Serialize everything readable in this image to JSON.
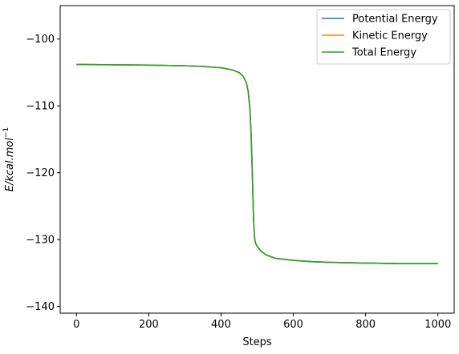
{
  "chart_data": {
    "type": "line",
    "xlabel": "Steps",
    "ylabel_main": "E/kcal.mol",
    "ylabel_sup": "−1",
    "xlim": [
      -45,
      1045
    ],
    "ylim": [
      -141,
      -95
    ],
    "xticks": [
      0,
      200,
      400,
      600,
      800,
      1000
    ],
    "xtick_labels": [
      "0",
      "200",
      "400",
      "600",
      "800",
      "1000"
    ],
    "yticks": [
      -100,
      -110,
      -120,
      -130,
      -140
    ],
    "ytick_labels": [
      "−100",
      "−110",
      "−120",
      "−130",
      "−140"
    ],
    "grid": false,
    "legend_position": "top-right",
    "series": [
      {
        "name": "Potential Energy",
        "color": "#1f77b4",
        "x": [
          0,
          100,
          200,
          300,
          350,
          400,
          430,
          450,
          460,
          470,
          475,
          480,
          483,
          486,
          488,
          490,
          492,
          494,
          496,
          500,
          510,
          525,
          550,
          600,
          650,
          700,
          800,
          900,
          1000
        ],
        "y": [
          -103.8,
          -103.85,
          -103.9,
          -104.0,
          -104.1,
          -104.3,
          -104.6,
          -105.0,
          -105.5,
          -106.5,
          -107.8,
          -110.5,
          -114,
          -119,
          -123,
          -127,
          -129.3,
          -130.2,
          -130.6,
          -131.0,
          -131.7,
          -132.3,
          -132.8,
          -133.1,
          -133.3,
          -133.4,
          -133.5,
          -133.6,
          -133.6
        ]
      },
      {
        "name": "Kinetic Energy",
        "color": "#ff7f0e",
        "x": [
          0,
          100,
          200,
          300,
          350,
          400,
          430,
          450,
          460,
          470,
          475,
          480,
          483,
          486,
          488,
          490,
          492,
          494,
          496,
          500,
          510,
          525,
          550,
          600,
          650,
          700,
          800,
          900,
          1000
        ],
        "y": [
          -103.8,
          -103.85,
          -103.9,
          -104.0,
          -104.1,
          -104.3,
          -104.6,
          -105.0,
          -105.5,
          -106.5,
          -107.8,
          -110.5,
          -114,
          -119,
          -123,
          -127,
          -129.3,
          -130.2,
          -130.6,
          -131.0,
          -131.7,
          -132.3,
          -132.8,
          -133.1,
          -133.3,
          -133.4,
          -133.5,
          -133.6,
          -133.6
        ]
      },
      {
        "name": "Total Energy",
        "color": "#2ca02c",
        "x": [
          0,
          100,
          200,
          300,
          350,
          400,
          430,
          450,
          460,
          470,
          475,
          480,
          483,
          486,
          488,
          490,
          492,
          494,
          496,
          500,
          510,
          525,
          550,
          600,
          650,
          700,
          800,
          900,
          1000
        ],
        "y": [
          -103.8,
          -103.85,
          -103.9,
          -104.0,
          -104.1,
          -104.3,
          -104.6,
          -105.0,
          -105.5,
          -106.5,
          -107.8,
          -110.5,
          -114,
          -119,
          -123,
          -127,
          -129.3,
          -130.2,
          -130.6,
          -131.0,
          -131.7,
          -132.3,
          -132.8,
          -133.1,
          -133.3,
          -133.4,
          -133.5,
          -133.6,
          -133.6
        ]
      }
    ]
  }
}
